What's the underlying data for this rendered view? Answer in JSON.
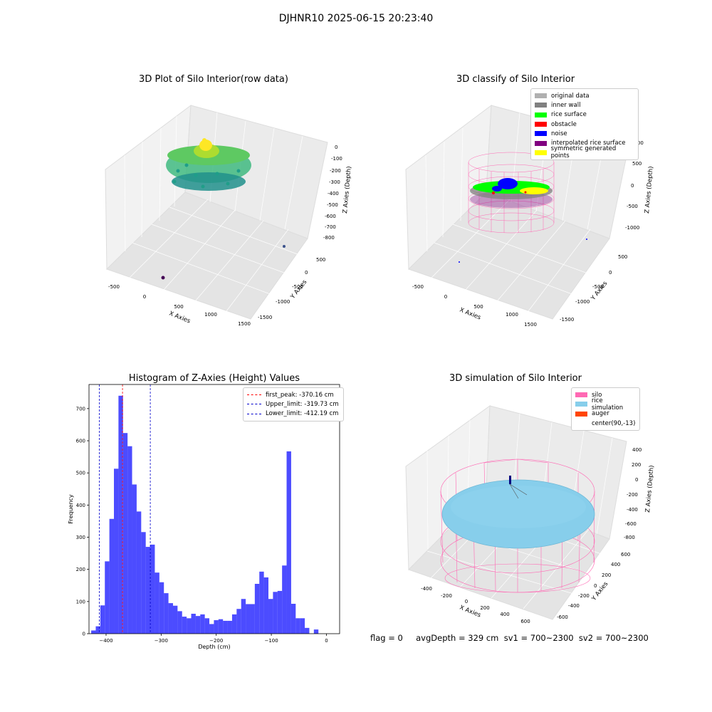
{
  "figure": {
    "suptitle": "DJHNR10 2025-06-15 20:23:40",
    "status_text": "flag = 0     avgDepth = 329 cm  sv1 = 700~2300  sv2 = 700~2300"
  },
  "panels": {
    "raw": {
      "title": "3D Plot of Silo Interior(row data)",
      "x_label": "X Axies",
      "y_label": "Y Axies",
      "z_label": "Z Axies (Depth)",
      "x_ticks": [
        "-500",
        "0",
        "500",
        "1000",
        "1500"
      ],
      "y_ticks": [
        "500",
        "0",
        "-500",
        "-1000",
        "-1500"
      ],
      "z_ticks": [
        "0",
        "-100",
        "-200",
        "-300",
        "-400",
        "-500",
        "-600",
        "-700",
        "-800"
      ]
    },
    "classify": {
      "title": "3D classify of Silo Interior",
      "x_label": "X Axies",
      "y_label": "Y Axies",
      "z_label": "Z Axies (Depth)",
      "x_ticks": [
        "-500",
        "0",
        "500",
        "1000",
        "1500"
      ],
      "y_ticks": [
        "500",
        "0",
        "-500",
        "-1000",
        "-1500"
      ],
      "z_ticks": [
        "1000",
        "500",
        "0",
        "-500",
        "-1000"
      ],
      "legend": [
        {
          "label": "original data",
          "color": "#b0b0b0"
        },
        {
          "label": "inner wall",
          "color": "#808080"
        },
        {
          "label": "rice surface",
          "color": "#00ff00"
        },
        {
          "label": "obstacle",
          "color": "#ff0000"
        },
        {
          "label": "noise",
          "color": "#0000ff"
        },
        {
          "label": "interpolated rice surface",
          "color": "#800080"
        },
        {
          "label": "symmetric generated points",
          "color": "#ffff00"
        }
      ]
    },
    "simulation": {
      "title": "3D simulation of Silo Interior",
      "x_label": "X Axies",
      "y_label": "Y Axies",
      "z_label": "Z Axies (Depth)",
      "x_ticks": [
        "-400",
        "-200",
        "0",
        "200",
        "400",
        "600"
      ],
      "y_ticks": [
        "600",
        "400",
        "200",
        "0",
        "-200",
        "-400",
        "-600"
      ],
      "z_ticks": [
        "400",
        "200",
        "0",
        "-200",
        "-400",
        "-600",
        "-800"
      ],
      "legend": [
        {
          "label": "silo",
          "color": "#ff69b4"
        },
        {
          "label": "rice simulation",
          "color": "#87ceeb"
        },
        {
          "label": "auger",
          "color": "#ff4500"
        },
        {
          "label": "center(90,-13)",
          "color": ""
        }
      ]
    }
  },
  "chart_data": {
    "type": "bar",
    "title": "Histogram of Z-Axies (Height) Values",
    "xlabel": "Depth (cm)",
    "ylabel": "Frequency",
    "xlim": [
      -431,
      24
    ],
    "ylim": [
      0,
      775
    ],
    "x_ticks": [
      -400,
      -300,
      -200,
      -100,
      0
    ],
    "y_ticks": [
      0,
      100,
      200,
      300,
      400,
      500,
      600,
      700
    ],
    "bin_start": -427,
    "bin_width": 8.25,
    "values": [
      10,
      23,
      88,
      225,
      357,
      513,
      740,
      624,
      583,
      464,
      380,
      316,
      270,
      277,
      190,
      160,
      126,
      95,
      87,
      70,
      53,
      48,
      62,
      55,
      60,
      48,
      30,
      42,
      45,
      40,
      40,
      60,
      77,
      108,
      92,
      92,
      155,
      193,
      175,
      108,
      130,
      133,
      212,
      567,
      93,
      48,
      48,
      18,
      0,
      13
    ],
    "color": "#0000ff",
    "reference_lines": [
      {
        "label": "first_peak: -370.16 cm",
        "x": -370.16,
        "color": "#ff0000"
      },
      {
        "label": "Upper_limit: -319.73 cm",
        "x": -319.73,
        "color": "#0000cc"
      },
      {
        "label": "Lower_limit: -412.19 cm",
        "x": -412.19,
        "color": "#0000cc"
      }
    ]
  }
}
